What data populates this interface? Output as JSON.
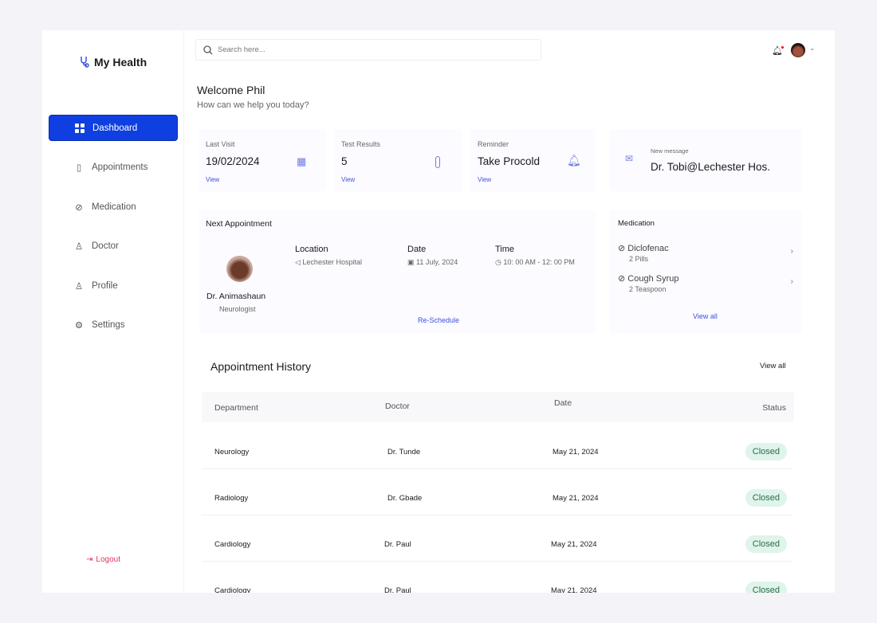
{
  "app": {
    "name": "My Health"
  },
  "sidebar": {
    "items": [
      {
        "label": "Dashboard",
        "icon": "grid-icon"
      },
      {
        "label": "Appointments",
        "icon": "clipboard-icon"
      },
      {
        "label": "Medication",
        "icon": "pill-icon"
      },
      {
        "label": "Doctor",
        "icon": "doctor-icon"
      },
      {
        "label": "Profile",
        "icon": "user-icon"
      },
      {
        "label": "Settings",
        "icon": "gear-icon"
      }
    ],
    "logout": "Logout"
  },
  "search": {
    "placeholder": "Search here..."
  },
  "header": {
    "welcome": "Welcome Phil",
    "subtitle": "How can we help you today?"
  },
  "stats": [
    {
      "label": "Last Visit",
      "value": "19/02/2024",
      "link": "View"
    },
    {
      "label": "Test Results",
      "value": "5",
      "link": "View"
    },
    {
      "label": "Reminder",
      "value": "Take Procold",
      "link": "View"
    }
  ],
  "message": {
    "label": "New message",
    "value": "Dr. Tobi@Lechester Hos."
  },
  "next_appointment": {
    "title": "Next Appointment",
    "doctor": "Dr.  Animashaun",
    "specialty": "Neurologist",
    "location_label": "Location",
    "location": "Lechester Hospital",
    "date_label": "Date",
    "date": "11 July, 2024",
    "time_label": "Time",
    "time": "10: 00 AM  - 12: 00 PM",
    "action": "Re-Schedule"
  },
  "medication": {
    "title": "Medication",
    "items": [
      {
        "name": "Diclofenac",
        "dose": "2 Pills"
      },
      {
        "name": "Cough Syrup",
        "dose": "2 Teaspoon"
      }
    ],
    "view_all": "View all"
  },
  "history": {
    "title": "Appointment History",
    "view_all": "View all",
    "columns": [
      "Department",
      "Doctor",
      "Date",
      "Status"
    ],
    "rows": [
      {
        "department": "Neurology",
        "doctor": "Dr. Tunde",
        "date": "May 21, 2024",
        "status": "Closed"
      },
      {
        "department": "Radiology",
        "doctor": "Dr. Gbade",
        "date": "May 21, 2024",
        "status": "Closed"
      },
      {
        "department": "Cardiology",
        "doctor": "Dr. Paul",
        "date": "May 21, 2024",
        "status": "Closed"
      },
      {
        "department": "Cardiology",
        "doctor": "Dr. Paul",
        "date": "May 21, 2024",
        "status": "Closed"
      }
    ]
  },
  "colors": {
    "accent": "#0f3fe0",
    "link": "#3d50e0",
    "logout": "#e2345a",
    "badge_bg": "#dff4ea"
  }
}
